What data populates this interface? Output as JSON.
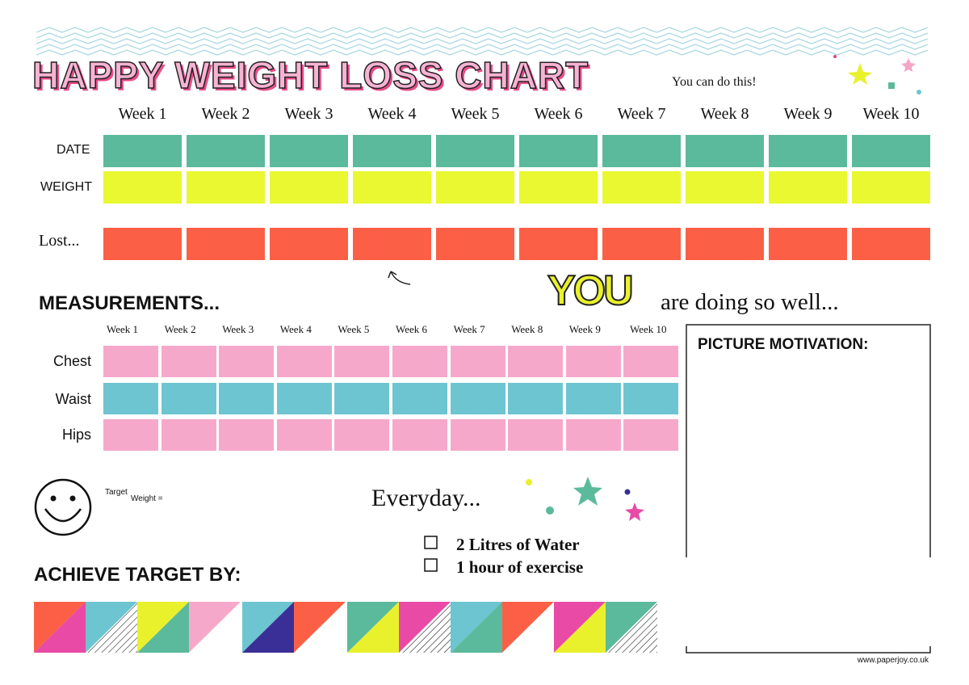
{
  "header": {
    "title": "HAPPY WEIGHT LOSS CHART",
    "tagline": "You can do this!"
  },
  "weight_table": {
    "weeks": [
      "Week 1",
      "Week 2",
      "Week 3",
      "Week 4",
      "Week 5",
      "Week 6",
      "Week 7",
      "Week 8",
      "Week 9",
      "Week 10"
    ],
    "rows": [
      "DATE",
      "WEIGHT",
      "Lost..."
    ]
  },
  "measurements": {
    "title": "MEASUREMENTS...",
    "weeks": [
      "Week 1",
      "Week 2",
      "Week 3",
      "Week 4",
      "Week 5",
      "Week 6",
      "Week 7",
      "Week 8",
      "Week 9",
      "Week 10"
    ],
    "rows": [
      "Chest",
      "Waist",
      "Hips"
    ]
  },
  "encouragement": {
    "highlight": "YOU",
    "text": "are doing so well..."
  },
  "picture_motivation": {
    "title": "PICTURE MOTIVATION:"
  },
  "target": {
    "superscript": "Target",
    "subscript": "Weight ="
  },
  "everyday": {
    "title": "Everyday...",
    "items": [
      "2 Litres of Water",
      "1 hour of exercise"
    ]
  },
  "achieve": {
    "title": "ACHIEVE TARGET BY:"
  },
  "footer": {
    "url": "www.paperjoy.co.uk"
  }
}
